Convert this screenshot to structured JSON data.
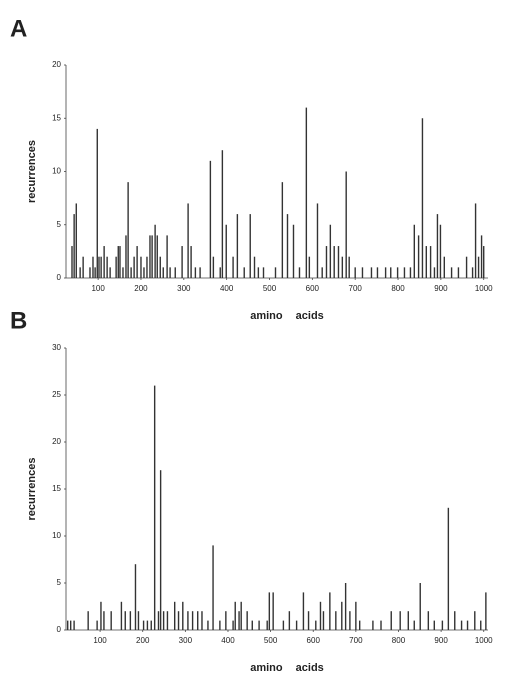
{
  "chart_data": [
    {
      "type": "bar",
      "panel": "A",
      "ylabel": "recurrences",
      "xlabel": "amino acids",
      "color": "#333333",
      "xlim": [
        25,
        1010
      ],
      "xticks": [
        100,
        200,
        300,
        400,
        500,
        600,
        700,
        800,
        900,
        1000
      ],
      "ylim": [
        0,
        20
      ],
      "yticks": [
        0,
        5,
        10,
        15,
        20
      ],
      "x": [
        39,
        44,
        49,
        58,
        65,
        81,
        88,
        93,
        98,
        102,
        107,
        114,
        121,
        128,
        142,
        147,
        151,
        158,
        165,
        170,
        177,
        184,
        191,
        200,
        207,
        214,
        221,
        226,
        233,
        238,
        245,
        252,
        261,
        268,
        280,
        296,
        310,
        317,
        327,
        338,
        362,
        369,
        385,
        390,
        399,
        415,
        425,
        441,
        455,
        465,
        474,
        486,
        514,
        530,
        542,
        556,
        570,
        586,
        593,
        612,
        623,
        633,
        642,
        651,
        661,
        670,
        679,
        686,
        700,
        717,
        738,
        752,
        771,
        783,
        799,
        815,
        829,
        838,
        848,
        857,
        866,
        876,
        885,
        892,
        899,
        908,
        925,
        941,
        960,
        974,
        981,
        988,
        995,
        1000
      ],
      "values": [
        3,
        6,
        7,
        1,
        2,
        1,
        2,
        1,
        14,
        2,
        2,
        3,
        2,
        1,
        2,
        3,
        3,
        1,
        4,
        9,
        1,
        2,
        3,
        2,
        1,
        2,
        4,
        4,
        5,
        4,
        2,
        1,
        4,
        1,
        1,
        3,
        7,
        3,
        1,
        1,
        11,
        2,
        1,
        12,
        5,
        2,
        6,
        1,
        6,
        2,
        1,
        1,
        1,
        9,
        6,
        5,
        1,
        16,
        2,
        7,
        1,
        3,
        5,
        3,
        3,
        2,
        10,
        2,
        1,
        1,
        1,
        1,
        1,
        1,
        1,
        1,
        1,
        5,
        4,
        15,
        3,
        3,
        1,
        6,
        5,
        2,
        1,
        1,
        2,
        1,
        7,
        2,
        4,
        3
      ]
    },
    {
      "type": "bar",
      "panel": "B",
      "ylabel": "recurrences",
      "xlabel": "amino acids",
      "color": "#333333",
      "xlim": [
        20,
        1010
      ],
      "xticks": [
        100,
        200,
        300,
        400,
        500,
        600,
        700,
        800,
        900,
        1000
      ],
      "ylim": [
        0,
        30
      ],
      "yticks": [
        0,
        5,
        10,
        15,
        20,
        25,
        30
      ],
      "x": [
        24,
        31,
        39,
        72,
        93,
        102,
        109,
        126,
        150,
        159,
        171,
        183,
        190,
        202,
        211,
        220,
        228,
        237,
        242,
        249,
        258,
        275,
        284,
        294,
        306,
        317,
        329,
        339,
        353,
        365,
        381,
        395,
        412,
        417,
        426,
        431,
        445,
        457,
        473,
        492,
        497,
        506,
        530,
        544,
        561,
        577,
        589,
        606,
        617,
        624,
        639,
        653,
        667,
        676,
        686,
        700,
        709,
        740,
        759,
        783,
        804,
        823,
        837,
        851,
        870,
        884,
        903,
        917,
        932,
        948,
        962,
        979,
        993,
        1005
      ],
      "values": [
        1,
        1,
        1,
        2,
        1,
        3,
        2,
        2,
        3,
        2,
        2,
        7,
        2,
        1,
        1,
        1,
        26,
        2,
        17,
        2,
        2,
        3,
        2,
        3,
        2,
        2,
        2,
        2,
        1,
        9,
        1,
        2,
        1,
        3,
        2,
        3,
        2,
        1,
        1,
        1,
        4,
        4,
        1,
        2,
        1,
        4,
        2,
        1,
        3,
        2,
        4,
        2,
        3,
        5,
        2,
        3,
        1,
        1,
        1,
        2,
        2,
        2,
        1,
        5,
        2,
        1,
        1,
        13,
        2,
        1,
        1,
        2,
        1,
        4
      ]
    }
  ]
}
